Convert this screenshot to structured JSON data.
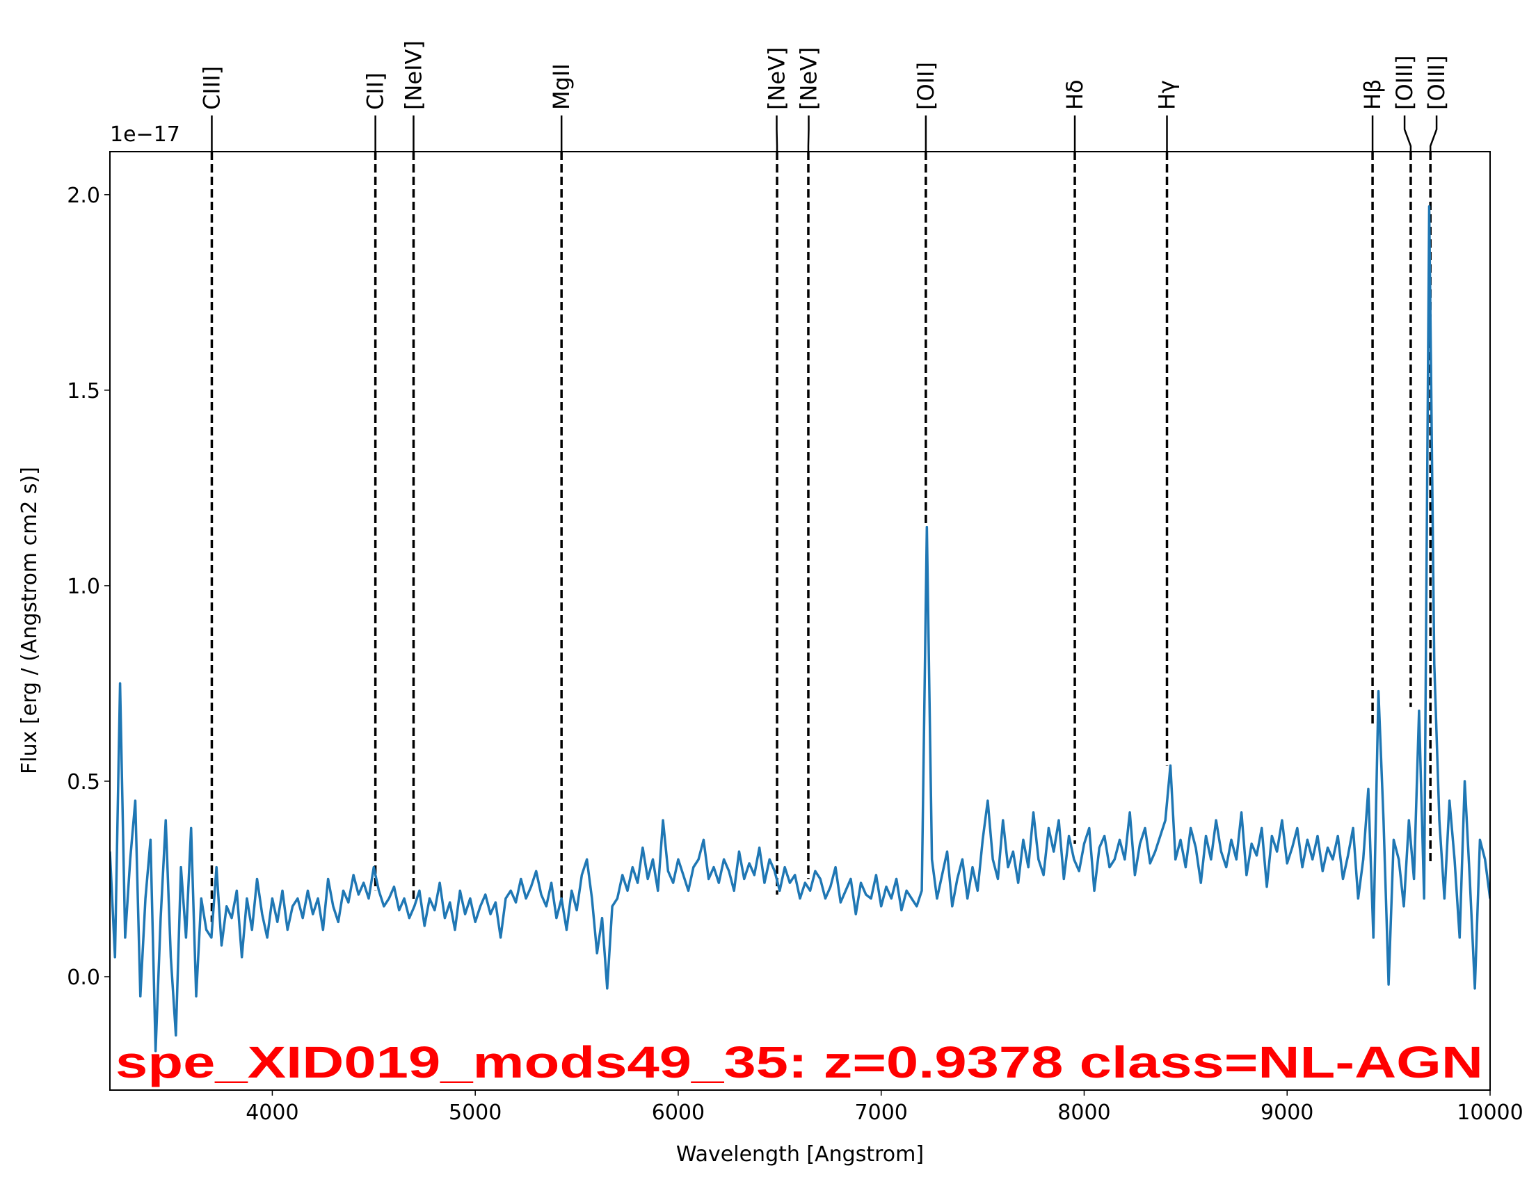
{
  "chart_data": {
    "type": "line",
    "title": "spe_XID019_mods49_35: z=0.9378 class=NL-AGN",
    "title_color": "#ff0000",
    "xlabel": "Wavelength [Angstrom]",
    "ylabel": "Flux [erg / (Angstrom cm2 s)]",
    "y_offset_label": "1e−17",
    "color": "#1f77b4",
    "xlim": [
      3200,
      10000
    ],
    "ylim": [
      -0.29,
      2.11
    ],
    "xticks": [
      4000,
      5000,
      6000,
      7000,
      8000,
      9000,
      10000
    ],
    "yticks": [
      {
        "value": 0,
        "label": "0.0"
      },
      0.5,
      {
        "value": 1,
        "label": "1.0"
      },
      1.5,
      {
        "value": 2,
        "label": "2.0"
      }
    ],
    "lines": [
      {
        "label": "CIII]",
        "wavelength": 3702,
        "flux": 0.14
      },
      {
        "label": "CII]",
        "wavelength": 4508,
        "flux": 0.22
      },
      {
        "label": "[NeIV]",
        "wavelength": 4696,
        "flux": 0.19
      },
      {
        "label": "MgII",
        "wavelength": 5425,
        "flux": 0.2
      },
      {
        "label": "[NeV]",
        "wavelength": 6487,
        "flux": 0.21
      },
      {
        "label": "[NeV]",
        "wavelength": 6641,
        "flux": 0.25
      },
      {
        "label": "[OII]",
        "wavelength": 7220,
        "flux": 1.15
      },
      {
        "label": "Hδ",
        "wavelength": 7954,
        "flux": 0.34
      },
      {
        "label": "Hγ",
        "wavelength": 8408,
        "flux": 0.54
      },
      {
        "label": "Hβ",
        "wavelength": 9421,
        "flux": 0.64
      },
      {
        "label": "[OIII]",
        "wavelength": 9609,
        "flux": 0.69
      },
      {
        "label": "[OIII]",
        "wavelength": 9706,
        "flux": 0.29
      }
    ],
    "x": [
      3200,
      3225,
      3250,
      3275,
      3300,
      3325,
      3350,
      3375,
      3400,
      3425,
      3450,
      3475,
      3500,
      3525,
      3550,
      3575,
      3600,
      3625,
      3650,
      3675,
      3700,
      3725,
      3750,
      3775,
      3800,
      3825,
      3850,
      3875,
      3900,
      3925,
      3950,
      3975,
      4000,
      4025,
      4050,
      4075,
      4100,
      4125,
      4150,
      4175,
      4200,
      4225,
      4250,
      4275,
      4300,
      4325,
      4350,
      4375,
      4400,
      4425,
      4450,
      4475,
      4500,
      4525,
      4550,
      4575,
      4600,
      4625,
      4650,
      4675,
      4700,
      4725,
      4750,
      4775,
      4800,
      4825,
      4850,
      4875,
      4900,
      4925,
      4950,
      4975,
      5000,
      5025,
      5050,
      5075,
      5100,
      5125,
      5150,
      5175,
      5200,
      5225,
      5250,
      5275,
      5300,
      5325,
      5350,
      5375,
      5400,
      5425,
      5450,
      5475,
      5500,
      5525,
      5550,
      5575,
      5600,
      5625,
      5650,
      5675,
      5700,
      5725,
      5750,
      5775,
      5800,
      5825,
      5850,
      5875,
      5900,
      5925,
      5950,
      5975,
      6000,
      6025,
      6050,
      6075,
      6100,
      6125,
      6150,
      6175,
      6200,
      6225,
      6250,
      6275,
      6300,
      6325,
      6350,
      6375,
      6400,
      6425,
      6450,
      6475,
      6500,
      6525,
      6550,
      6575,
      6600,
      6625,
      6650,
      6675,
      6700,
      6725,
      6750,
      6775,
      6800,
      6825,
      6850,
      6875,
      6900,
      6925,
      6950,
      6975,
      7000,
      7025,
      7050,
      7075,
      7100,
      7125,
      7150,
      7175,
      7200,
      7225,
      7250,
      7275,
      7300,
      7325,
      7350,
      7375,
      7400,
      7425,
      7450,
      7475,
      7500,
      7525,
      7550,
      7575,
      7600,
      7625,
      7650,
      7675,
      7700,
      7725,
      7750,
      7775,
      7800,
      7825,
      7850,
      7875,
      7900,
      7925,
      7950,
      7975,
      8000,
      8025,
      8050,
      8075,
      8100,
      8125,
      8150,
      8175,
      8200,
      8225,
      8250,
      8275,
      8300,
      8325,
      8350,
      8375,
      8400,
      8425,
      8450,
      8475,
      8500,
      8525,
      8550,
      8575,
      8600,
      8625,
      8650,
      8675,
      8700,
      8725,
      8750,
      8775,
      8800,
      8825,
      8850,
      8875,
      8900,
      8925,
      8950,
      8975,
      9000,
      9025,
      9050,
      9075,
      9100,
      9125,
      9150,
      9175,
      9200,
      9225,
      9250,
      9275,
      9300,
      9325,
      9350,
      9375,
      9400,
      9425,
      9450,
      9475,
      9500,
      9525,
      9550,
      9575,
      9600,
      9625,
      9650,
      9675,
      9700,
      9725,
      9750,
      9775,
      9800,
      9825,
      9850,
      9875,
      9900,
      9925,
      9950,
      9975,
      10000
    ],
    "values": [
      0.32,
      0.05,
      0.75,
      0.1,
      0.3,
      0.45,
      -0.05,
      0.2,
      0.35,
      -0.19,
      0.15,
      0.4,
      0.05,
      -0.15,
      0.28,
      0.1,
      0.38,
      -0.05,
      0.2,
      0.12,
      0.1,
      0.28,
      0.08,
      0.18,
      0.15,
      0.22,
      0.05,
      0.2,
      0.12,
      0.25,
      0.16,
      0.1,
      0.2,
      0.14,
      0.22,
      0.12,
      0.18,
      0.2,
      0.15,
      0.22,
      0.16,
      0.2,
      0.12,
      0.25,
      0.18,
      0.14,
      0.22,
      0.19,
      0.26,
      0.21,
      0.24,
      0.2,
      0.28,
      0.22,
      0.18,
      0.2,
      0.23,
      0.17,
      0.2,
      0.15,
      0.18,
      0.22,
      0.13,
      0.2,
      0.17,
      0.24,
      0.15,
      0.19,
      0.12,
      0.22,
      0.16,
      0.2,
      0.14,
      0.18,
      0.21,
      0.16,
      0.19,
      0.1,
      0.2,
      0.22,
      0.19,
      0.25,
      0.2,
      0.23,
      0.27,
      0.21,
      0.18,
      0.24,
      0.15,
      0.2,
      0.12,
      0.22,
      0.17,
      0.26,
      0.3,
      0.2,
      0.06,
      0.15,
      -0.03,
      0.18,
      0.2,
      0.26,
      0.22,
      0.28,
      0.24,
      0.33,
      0.25,
      0.3,
      0.22,
      0.4,
      0.27,
      0.24,
      0.3,
      0.26,
      0.22,
      0.28,
      0.3,
      0.35,
      0.25,
      0.28,
      0.24,
      0.3,
      0.27,
      0.22,
      0.32,
      0.25,
      0.29,
      0.26,
      0.33,
      0.24,
      0.3,
      0.27,
      0.22,
      0.28,
      0.24,
      0.26,
      0.2,
      0.24,
      0.22,
      0.27,
      0.25,
      0.2,
      0.23,
      0.28,
      0.19,
      0.22,
      0.25,
      0.16,
      0.24,
      0.21,
      0.2,
      0.26,
      0.18,
      0.23,
      0.2,
      0.25,
      0.17,
      0.22,
      0.2,
      0.18,
      0.22,
      1.15,
      0.3,
      0.2,
      0.26,
      0.32,
      0.18,
      0.25,
      0.3,
      0.2,
      0.28,
      0.22,
      0.35,
      0.45,
      0.3,
      0.25,
      0.4,
      0.28,
      0.32,
      0.24,
      0.35,
      0.28,
      0.42,
      0.3,
      0.26,
      0.38,
      0.32,
      0.4,
      0.25,
      0.36,
      0.3,
      0.27,
      0.34,
      0.38,
      0.22,
      0.33,
      0.36,
      0.28,
      0.3,
      0.35,
      0.3,
      0.42,
      0.26,
      0.34,
      0.38,
      0.29,
      0.32,
      0.36,
      0.4,
      0.54,
      0.3,
      0.35,
      0.28,
      0.38,
      0.33,
      0.24,
      0.36,
      0.3,
      0.4,
      0.32,
      0.28,
      0.35,
      0.3,
      0.42,
      0.26,
      0.34,
      0.31,
      0.38,
      0.23,
      0.36,
      0.32,
      0.4,
      0.29,
      0.33,
      0.38,
      0.28,
      0.35,
      0.3,
      0.36,
      0.27,
      0.33,
      0.3,
      0.36,
      0.25,
      0.31,
      0.38,
      0.2,
      0.3,
      0.48,
      0.1,
      0.73,
      0.4,
      -0.02,
      0.35,
      0.3,
      0.18,
      0.4,
      0.25,
      0.68,
      0.2,
      1.97,
      0.8,
      0.4,
      0.2,
      0.45,
      0.3,
      0.1,
      0.5,
      0.25,
      -0.03,
      0.35,
      0.3,
      0.2
    ]
  }
}
